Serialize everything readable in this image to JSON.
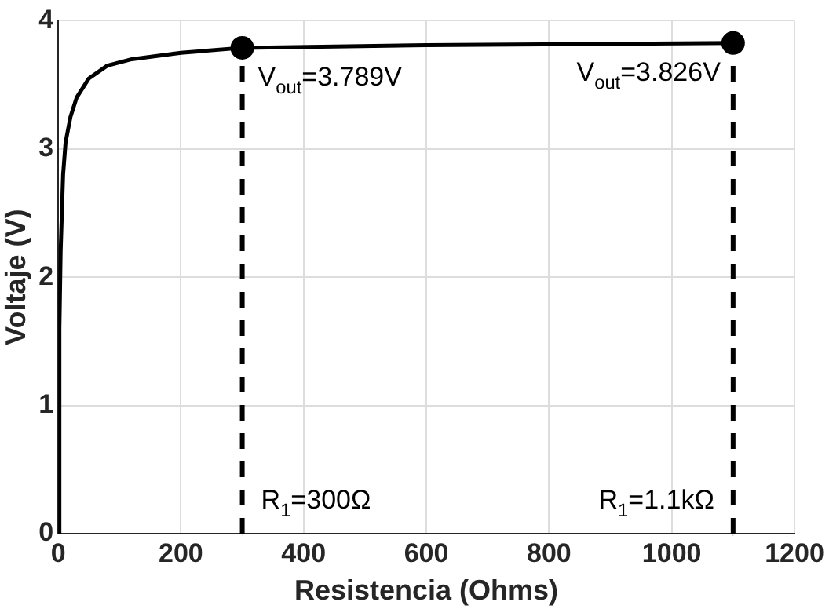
{
  "chart_data": {
    "type": "line",
    "xlabel": "Resistencia (Ohms)",
    "ylabel": "Voltaje (V)",
    "xlim": [
      0,
      1200
    ],
    "xticks": [
      0,
      200,
      400,
      600,
      800,
      1000,
      1200
    ],
    "ylim": [
      0,
      4
    ],
    "yticks": [
      0,
      1,
      2,
      3,
      4
    ],
    "grid": true,
    "marker": "none",
    "line_style": "solid",
    "series": [
      {
        "color": "#000000",
        "x": [
          0,
          2,
          4,
          8,
          12,
          20,
          30,
          50,
          80,
          120,
          200,
          300,
          600,
          1100
        ],
        "values": [
          0,
          1.6,
          2.2,
          2.8,
          3.05,
          3.25,
          3.4,
          3.55,
          3.65,
          3.7,
          3.75,
          3.789,
          3.81,
          3.826
        ]
      },
      {
        "type": "scatter",
        "color": "#000000",
        "marker": "circle",
        "x": [
          300,
          1100
        ],
        "values": [
          3.789,
          3.826
        ]
      }
    ],
    "ref_lines": [
      {
        "axis": "x",
        "value": 300,
        "label": "R$_{1}$=300Ω",
        "color": "#000000",
        "line_style": "dashed"
      },
      {
        "axis": "x",
        "value": 1100,
        "label": "R$_{1}$=1.1kΩ",
        "color": "#000000",
        "line_style": "dashed"
      }
    ],
    "annotations": [
      {
        "text": "V$_{out}$=3.789V",
        "x": 300,
        "y": 3.789
      },
      {
        "text": "V$_{out}$=3.826V",
        "x": 1100,
        "y": 3.826
      }
    ]
  }
}
